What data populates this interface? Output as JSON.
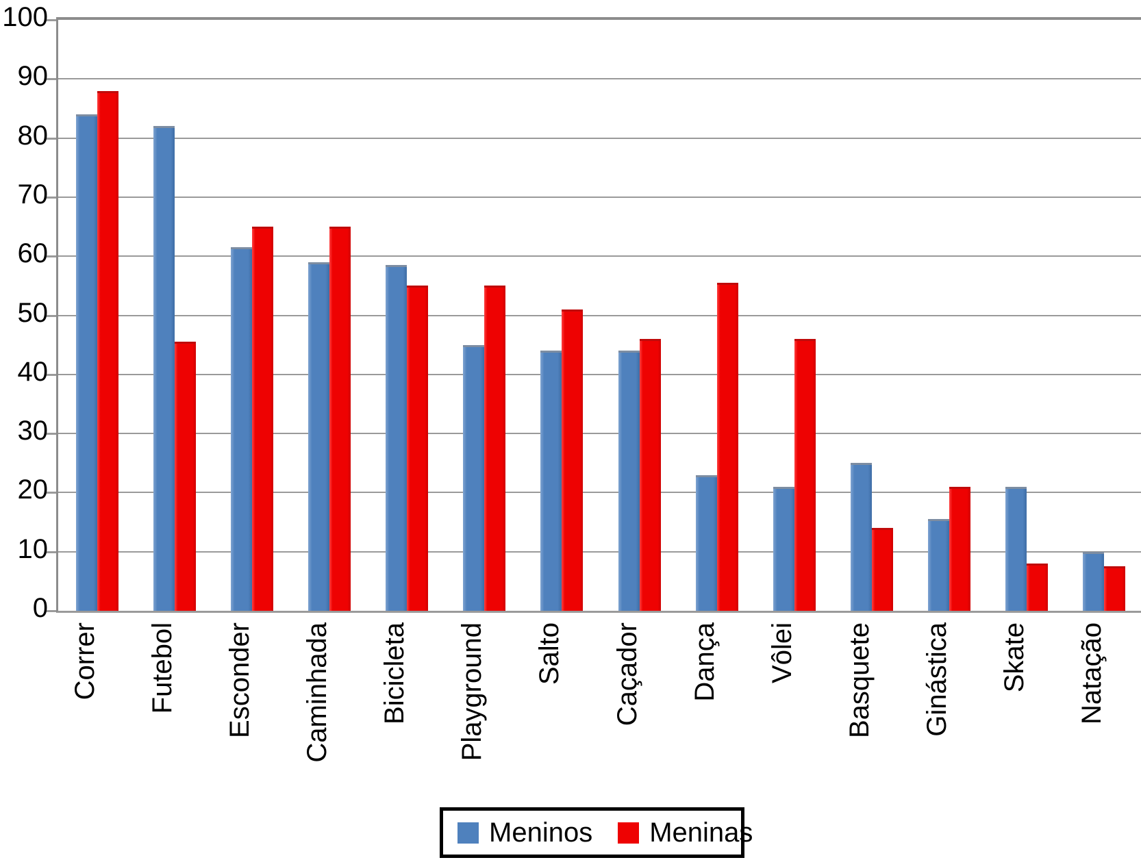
{
  "chart_data": {
    "type": "bar",
    "categories": [
      "Correr",
      "Futebol",
      "Esconder",
      "Caminhada",
      "Bicicleta",
      "Playground",
      "Salto",
      "Caçador",
      "Dança",
      "Vôlei",
      "Basquete",
      "Ginástica",
      "Skate",
      "Natação"
    ],
    "series": [
      {
        "name": "Meninos",
        "color": "#4f81bd",
        "values": [
          84,
          82,
          61.5,
          59,
          58.5,
          45,
          44,
          44,
          23,
          21,
          25,
          15.5,
          21,
          10
        ]
      },
      {
        "name": "Meninas",
        "color": "#ee0202",
        "values": [
          88,
          45.5,
          65,
          65,
          55,
          55,
          51,
          46,
          55.5,
          46,
          14,
          21,
          8,
          7.5
        ]
      }
    ],
    "title": "",
    "xlabel": "",
    "ylabel": "",
    "ylim": [
      0,
      100
    ],
    "yticks": [
      0,
      10,
      20,
      30,
      40,
      50,
      60,
      70,
      80,
      90,
      100
    ],
    "grid": true,
    "gridline_color": "#9a9a9a",
    "legend_position": "bottom",
    "x_tick_label_rotation": 90
  },
  "legend": {
    "items": [
      {
        "label": "Meninos",
        "color": "#4f81bd"
      },
      {
        "label": "Meninas",
        "color": "#ee0202"
      }
    ]
  }
}
